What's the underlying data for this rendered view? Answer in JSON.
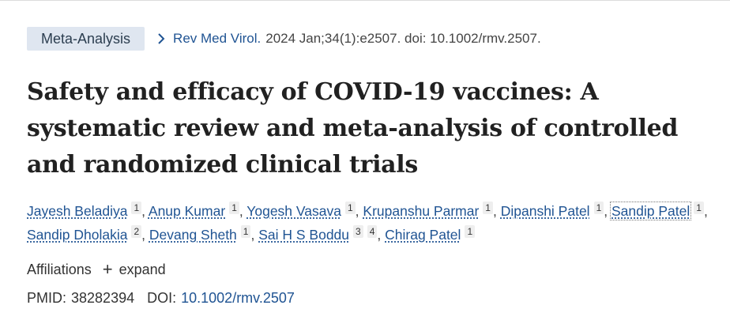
{
  "article_type": "Meta-Analysis",
  "citation": {
    "journal": "Rev Med Virol.",
    "details": "2024 Jan;34(1):e2507. doi: 10.1002/rmv.2507."
  },
  "title": "Safety and efficacy of COVID-19 vaccines: A systematic review and meta-analysis of controlled and randomized clinical trials",
  "authors": [
    {
      "name": "Jayesh Beladiya",
      "affils": [
        "1"
      ]
    },
    {
      "name": "Anup Kumar",
      "affils": [
        "1"
      ]
    },
    {
      "name": "Yogesh Vasava",
      "affils": [
        "1"
      ]
    },
    {
      "name": "Krupanshu Parmar",
      "affils": [
        "1"
      ]
    },
    {
      "name": "Dipanshi Patel",
      "affils": [
        "1"
      ]
    },
    {
      "name": "Sandip Patel",
      "affils": [
        "1"
      ]
    },
    {
      "name": "Sandip Dholakia",
      "affils": [
        "2"
      ]
    },
    {
      "name": "Devang Sheth",
      "affils": [
        "1"
      ]
    },
    {
      "name": "Sai H S Boddu",
      "affils": [
        "3",
        "4"
      ]
    },
    {
      "name": "Chirag Patel",
      "affils": [
        "1"
      ]
    }
  ],
  "affiliations": {
    "label": "Affiliations",
    "expand_label": "expand",
    "expand_icon": "plus-icon"
  },
  "identifiers": {
    "pmid_label": "PMID:",
    "pmid": "38282394",
    "doi_label": "DOI:",
    "doi": "10.1002/rmv.2507"
  },
  "colors": {
    "link": "#205493",
    "badge_bg": "#dfe6f0",
    "text": "#212121"
  }
}
